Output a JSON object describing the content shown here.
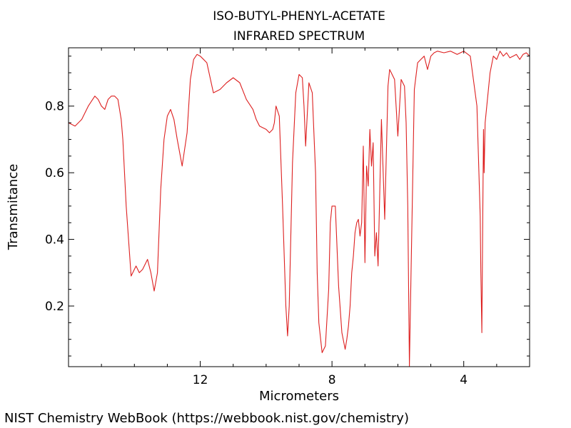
{
  "chart_data": {
    "type": "line",
    "title": "ISO-BUTYL-PHENYL-ACETATE",
    "subtitle": "INFRARED SPECTRUM",
    "xlabel": "Micrometers",
    "ylabel": "Transmitance",
    "x_reversed": true,
    "xlim": [
      16.0,
      2.0
    ],
    "ylim": [
      0.018,
      0.975
    ],
    "x_major_ticks": [
      12,
      8,
      4
    ],
    "x_minor_ticks": [
      15,
      14,
      13,
      11,
      10,
      9,
      7,
      6,
      5,
      3
    ],
    "y_major_ticks": [
      0.2,
      0.4,
      0.6,
      0.8
    ],
    "y_minor_ticks": [
      0.05,
      0.1,
      0.15,
      0.25,
      0.3,
      0.35,
      0.45,
      0.5,
      0.55,
      0.65,
      0.7,
      0.75,
      0.85,
      0.9,
      0.95
    ],
    "x_tick_labels": [
      "12",
      "8",
      "4"
    ],
    "y_tick_labels": [
      "0.2",
      "0.4",
      "0.6",
      "0.8"
    ],
    "grid": false,
    "series": [
      {
        "color": "#dd2020",
        "x": [
          16.0,
          15.8,
          15.6,
          15.4,
          15.2,
          15.1,
          15.0,
          14.9,
          14.8,
          14.7,
          14.6,
          14.5,
          14.4,
          14.35,
          14.25,
          14.1,
          13.95,
          13.85,
          13.75,
          13.6,
          13.5,
          13.4,
          13.3,
          13.2,
          13.1,
          13.0,
          12.9,
          12.8,
          12.7,
          12.55,
          12.4,
          12.3,
          12.2,
          12.1,
          12.0,
          11.9,
          11.8,
          11.6,
          11.4,
          11.2,
          11.0,
          10.8,
          10.6,
          10.4,
          10.3,
          10.2,
          10.0,
          9.9,
          9.8,
          9.75,
          9.7,
          9.6,
          9.5,
          9.4,
          9.35,
          9.3,
          9.2,
          9.1,
          9.0,
          8.9,
          8.85,
          8.8,
          8.7,
          8.6,
          8.5,
          8.45,
          8.4,
          8.3,
          8.2,
          8.1,
          8.05,
          8.0,
          7.9,
          7.8,
          7.7,
          7.6,
          7.55,
          7.5,
          7.45,
          7.4,
          7.35,
          7.3,
          7.25,
          7.2,
          7.15,
          7.1,
          7.05,
          7.0,
          6.95,
          6.9,
          6.85,
          6.8,
          6.75,
          6.7,
          6.65,
          6.6,
          6.5,
          6.4,
          6.3,
          6.25,
          6.2,
          6.1,
          6.0,
          5.9,
          5.8,
          5.75,
          5.7,
          5.65,
          5.6,
          5.5,
          5.4,
          5.3,
          5.2,
          5.1,
          5.0,
          4.9,
          4.8,
          4.6,
          4.4,
          4.2,
          4.0,
          3.8,
          3.6,
          3.5,
          3.48,
          3.45,
          3.42,
          3.4,
          3.38,
          3.35,
          3.3,
          3.2,
          3.1,
          3.0,
          2.9,
          2.8,
          2.7,
          2.6,
          2.5,
          2.4,
          2.3,
          2.2,
          2.1,
          2.0
        ],
        "y": [
          0.75,
          0.74,
          0.76,
          0.8,
          0.83,
          0.82,
          0.8,
          0.79,
          0.82,
          0.83,
          0.83,
          0.82,
          0.76,
          0.7,
          0.5,
          0.29,
          0.32,
          0.3,
          0.31,
          0.34,
          0.3,
          0.245,
          0.3,
          0.55,
          0.7,
          0.77,
          0.79,
          0.76,
          0.7,
          0.62,
          0.72,
          0.88,
          0.94,
          0.955,
          0.95,
          0.94,
          0.93,
          0.84,
          0.85,
          0.87,
          0.885,
          0.87,
          0.82,
          0.79,
          0.76,
          0.74,
          0.73,
          0.72,
          0.73,
          0.75,
          0.8,
          0.77,
          0.5,
          0.2,
          0.11,
          0.2,
          0.63,
          0.84,
          0.895,
          0.885,
          0.8,
          0.68,
          0.87,
          0.84,
          0.6,
          0.3,
          0.15,
          0.06,
          0.08,
          0.25,
          0.45,
          0.5,
          0.5,
          0.26,
          0.12,
          0.07,
          0.1,
          0.14,
          0.2,
          0.3,
          0.35,
          0.42,
          0.45,
          0.46,
          0.41,
          0.45,
          0.68,
          0.33,
          0.62,
          0.56,
          0.73,
          0.62,
          0.69,
          0.35,
          0.42,
          0.32,
          0.76,
          0.46,
          0.86,
          0.91,
          0.9,
          0.88,
          0.71,
          0.88,
          0.86,
          0.75,
          0.5,
          0.02,
          0.3,
          0.85,
          0.93,
          0.94,
          0.95,
          0.91,
          0.95,
          0.96,
          0.965,
          0.96,
          0.965,
          0.955,
          0.965,
          0.95,
          0.8,
          0.47,
          0.3,
          0.12,
          0.5,
          0.73,
          0.6,
          0.75,
          0.8,
          0.9,
          0.95,
          0.94,
          0.965,
          0.95,
          0.96,
          0.945,
          0.95,
          0.955,
          0.94,
          0.955,
          0.96,
          0.95
        ]
      }
    ]
  },
  "footer": {
    "credit": "NIST Chemistry WebBook (https://webbook.nist.gov/chemistry)"
  }
}
